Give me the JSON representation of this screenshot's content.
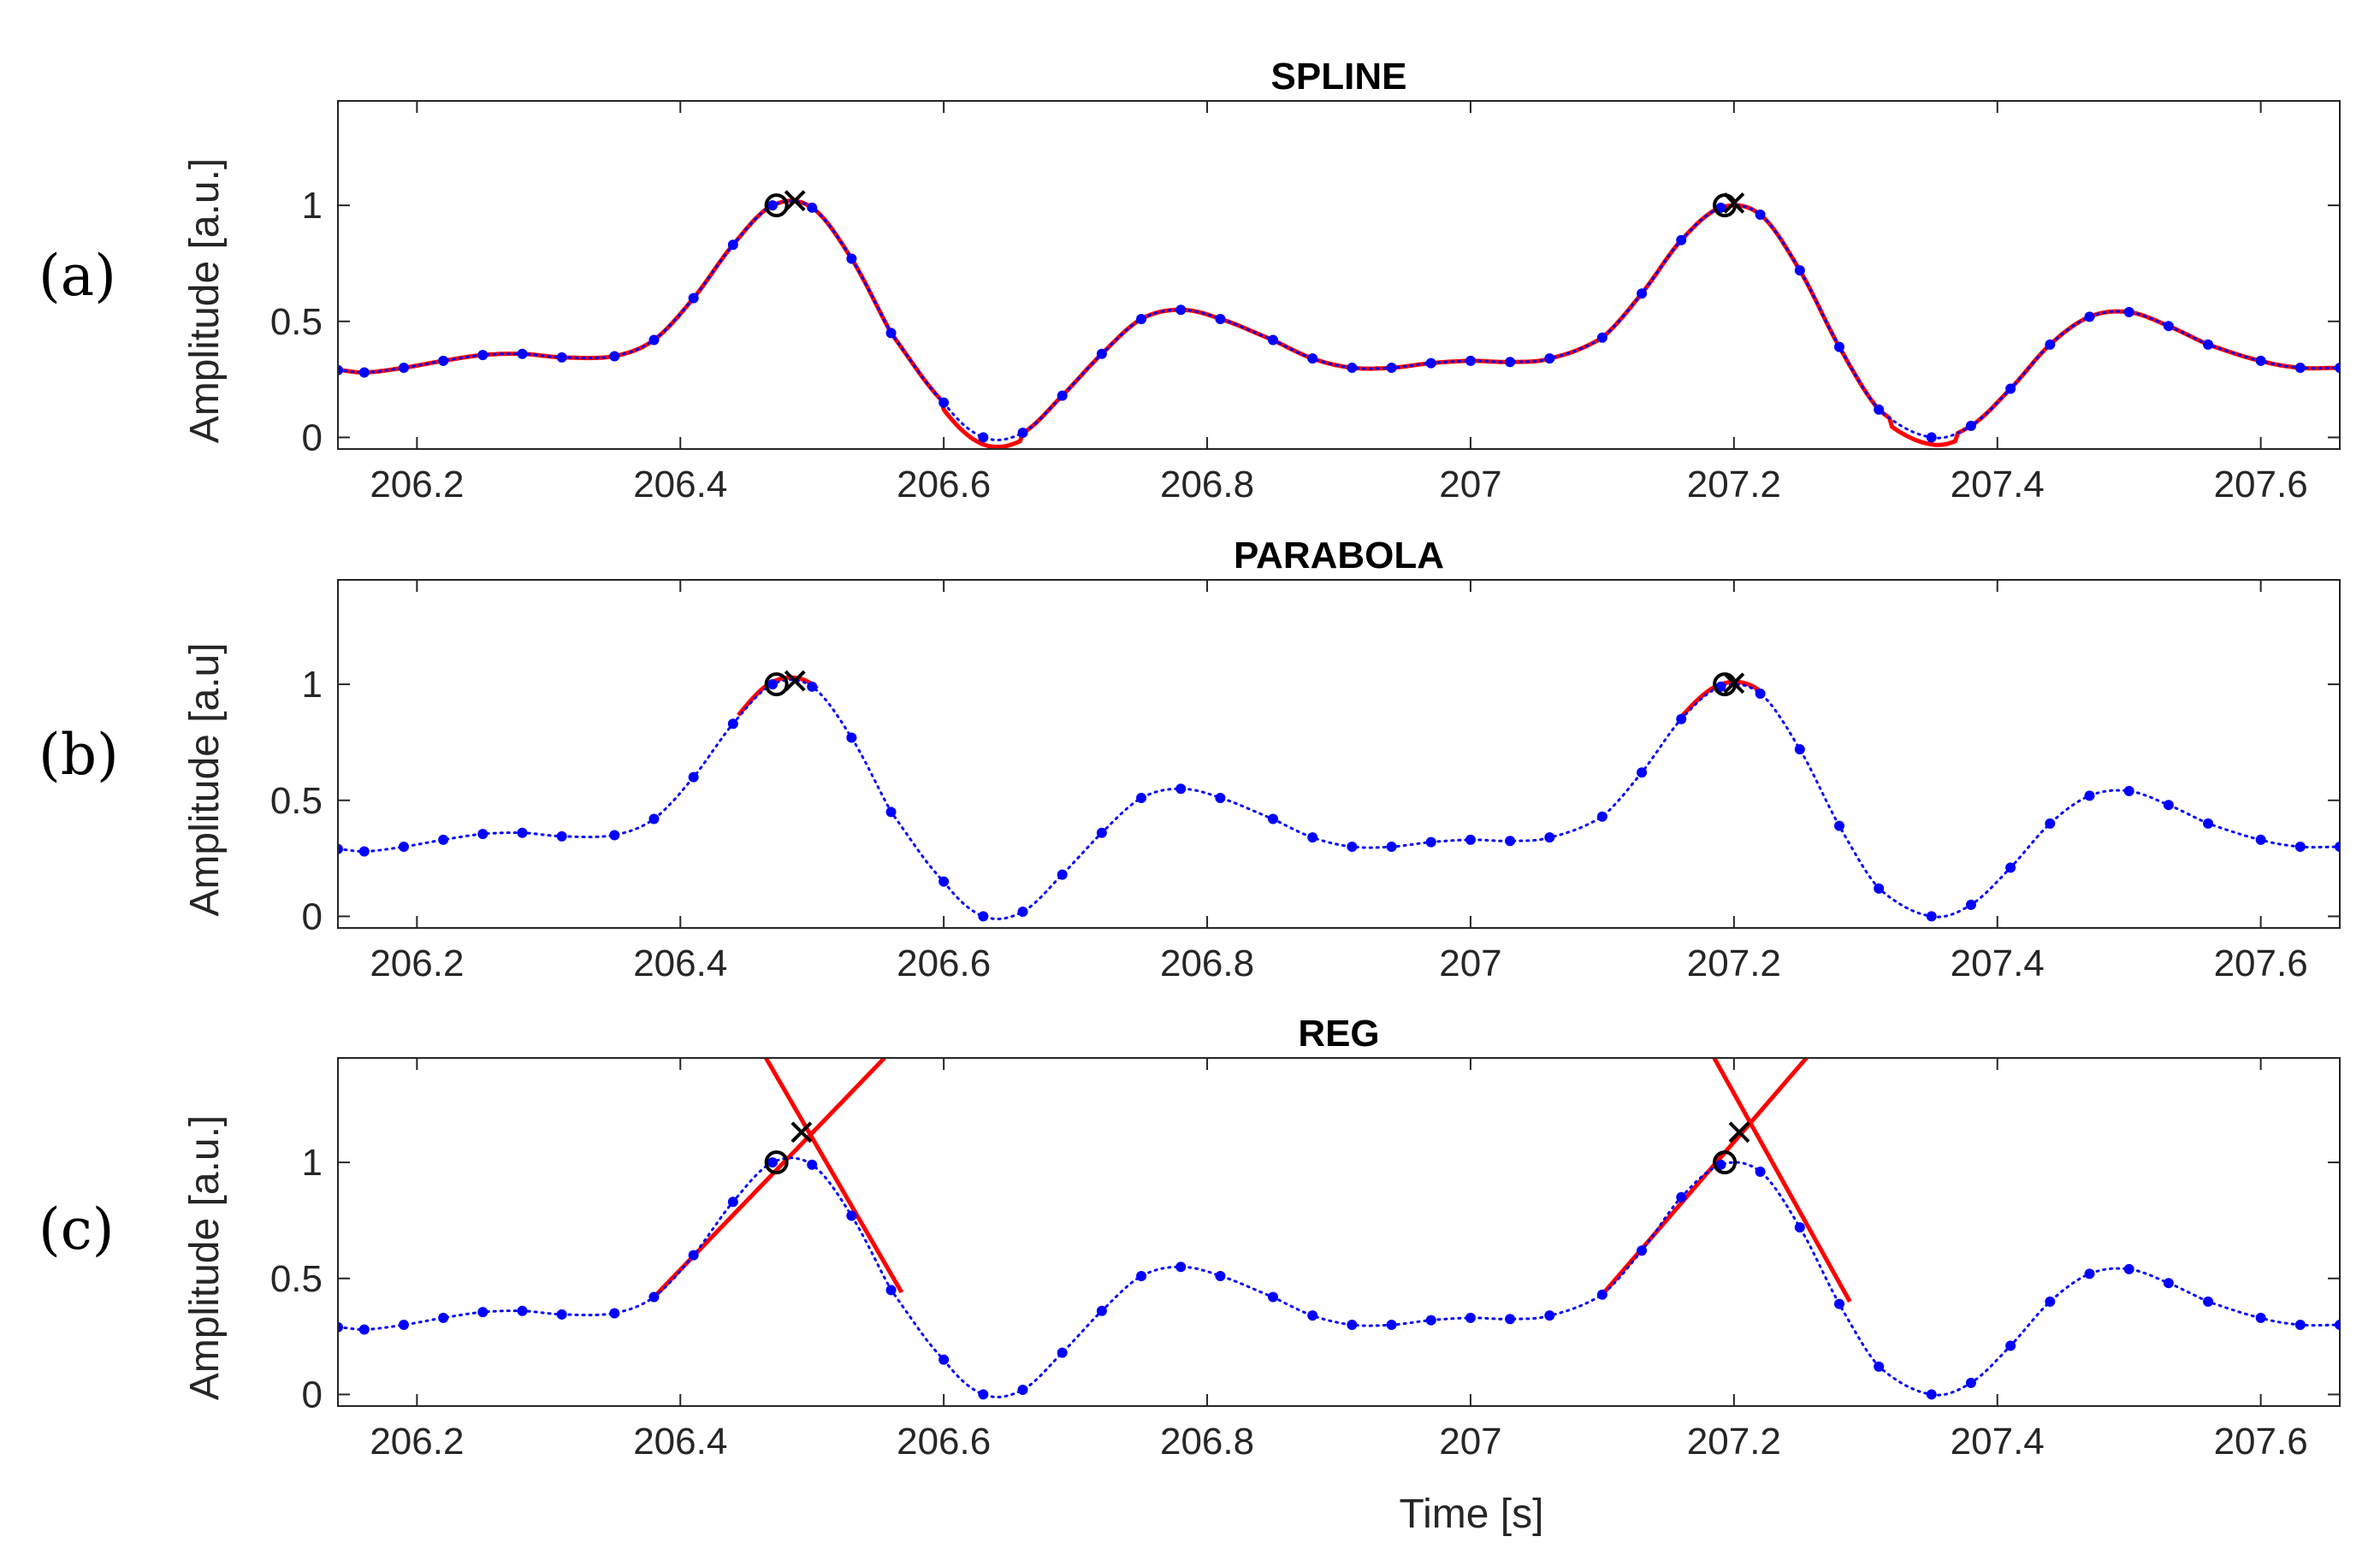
{
  "panel_labels": [
    "(a)",
    "(b)",
    "(c)"
  ],
  "xaxis_label": "Time [s]",
  "colors": {
    "signal": "#0000ff",
    "fit": "#ff0000",
    "marker": "#000000"
  },
  "chart_data": [
    {
      "type": "line",
      "title": "SPLINE",
      "ylabel": "Amplitude [a.u.]",
      "xlim": [
        206.14,
        207.66
      ],
      "ylim": [
        -0.05,
        1.45
      ],
      "xticks": [
        206.2,
        206.4,
        206.6,
        206.8,
        207,
        207.2,
        207.4,
        207.6
      ],
      "xtick_labels": [
        "206.2",
        "206.4",
        "206.6",
        "206.8",
        "207",
        "207.2",
        "207.4",
        "207.6"
      ],
      "yticks": [
        0,
        0.5,
        1
      ],
      "ytick_labels": [
        "0",
        "0.5",
        "1"
      ],
      "fit": "spline",
      "markers": [
        {
          "x": 206.473,
          "y": 1.0,
          "shape": "circle"
        },
        {
          "x": 206.487,
          "y": 1.02,
          "shape": "cross"
        },
        {
          "x": 207.193,
          "y": 1.0,
          "shape": "circle"
        },
        {
          "x": 207.2,
          "y": 1.01,
          "shape": "cross"
        }
      ]
    },
    {
      "type": "line",
      "title": "PARABOLA",
      "ylabel": "Amplitude [a.u]",
      "xlim": [
        206.14,
        207.66
      ],
      "ylim": [
        -0.05,
        1.45
      ],
      "xticks": [
        206.2,
        206.4,
        206.6,
        206.8,
        207,
        207.2,
        207.4,
        207.6
      ],
      "xtick_labels": [
        "206.2",
        "206.4",
        "206.6",
        "206.8",
        "207",
        "207.2",
        "207.4",
        "207.6"
      ],
      "yticks": [
        0,
        0.5,
        1
      ],
      "ytick_labels": [
        "0",
        "0.5",
        "1"
      ],
      "fit": "parabola",
      "fit_ranges": [
        [
          206.444,
          206.504
        ],
        [
          207.159,
          207.221
        ]
      ],
      "markers": [
        {
          "x": 206.473,
          "y": 1.0,
          "shape": "circle"
        },
        {
          "x": 206.487,
          "y": 1.015,
          "shape": "cross"
        },
        {
          "x": 207.193,
          "y": 1.0,
          "shape": "circle"
        },
        {
          "x": 207.2,
          "y": 1.005,
          "shape": "cross"
        }
      ]
    },
    {
      "type": "line",
      "title": "REG",
      "ylabel": "Amplitude [a.u.]",
      "xlim": [
        206.14,
        207.66
      ],
      "ylim": [
        -0.05,
        1.45
      ],
      "xticks": [
        206.2,
        206.4,
        206.6,
        206.8,
        207,
        207.2,
        207.4,
        207.6
      ],
      "xtick_labels": [
        "206.2",
        "206.4",
        "206.6",
        "206.8",
        "207",
        "207.2",
        "207.4",
        "207.6"
      ],
      "yticks": [
        0,
        0.5,
        1
      ],
      "ytick_labels": [
        "0",
        "0.5",
        "1"
      ],
      "fit": "regression",
      "reg_lines": [
        {
          "x1": 206.38,
          "y1": 0.42,
          "x2": 206.555,
          "y2": 1.45
        },
        {
          "x1": 206.465,
          "y1": 1.45,
          "x2": 206.568,
          "y2": 0.44
        },
        {
          "x1": 207.1,
          "y1": 0.43,
          "x2": 207.255,
          "y2": 1.45
        },
        {
          "x1": 207.185,
          "y1": 1.45,
          "x2": 207.288,
          "y2": 0.4
        }
      ],
      "markers": [
        {
          "x": 206.473,
          "y": 1.0,
          "shape": "circle"
        },
        {
          "x": 206.492,
          "y": 1.13,
          "shape": "cross"
        },
        {
          "x": 207.193,
          "y": 1.0,
          "shape": "circle"
        },
        {
          "x": 207.204,
          "y": 1.13,
          "shape": "cross"
        }
      ]
    }
  ],
  "signal": {
    "x": [
      206.14,
      206.16,
      206.19,
      206.22,
      206.25,
      206.28,
      206.31,
      206.35,
      206.38,
      206.41,
      206.44,
      206.47,
      206.5,
      206.53,
      206.56,
      206.6,
      206.63,
      206.66,
      206.69,
      206.72,
      206.75,
      206.78,
      206.81,
      206.85,
      206.88,
      206.91,
      206.94,
      206.97,
      207.0,
      207.03,
      207.06,
      207.1,
      207.13,
      207.16,
      207.19,
      207.22,
      207.25,
      207.28,
      207.31,
      207.35,
      207.38,
      207.41,
      207.44,
      207.47,
      207.5,
      207.53,
      207.56,
      207.6,
      207.63,
      207.66
    ],
    "y": [
      0.29,
      0.28,
      0.3,
      0.33,
      0.355,
      0.36,
      0.345,
      0.35,
      0.42,
      0.6,
      0.83,
      1.0,
      0.99,
      0.77,
      0.45,
      0.15,
      0.0,
      0.02,
      0.18,
      0.36,
      0.51,
      0.55,
      0.51,
      0.42,
      0.34,
      0.3,
      0.3,
      0.32,
      0.33,
      0.325,
      0.34,
      0.43,
      0.62,
      0.85,
      0.99,
      0.96,
      0.72,
      0.39,
      0.12,
      0.0,
      0.05,
      0.21,
      0.4,
      0.52,
      0.54,
      0.48,
      0.4,
      0.33,
      0.3,
      0.3
    ]
  }
}
